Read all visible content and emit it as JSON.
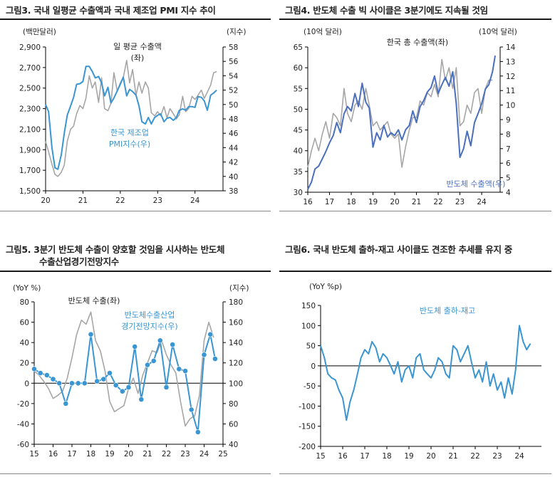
{
  "colors": {
    "gray": "#a6a6a6",
    "blue_light": "#3a95d3",
    "blue_dark": "#4a6fbf"
  },
  "chart_data": [
    {
      "type": "line",
      "title": "그림3.  국내 일평균 수출액과 국내 제조업 PMI 지수 추이",
      "ylabel": "(백만달러)",
      "y2label": "(지수)",
      "ylim": [
        1500,
        2900
      ],
      "y2lim": [
        38,
        58
      ],
      "yticks": [
        "1,500",
        "1,700",
        "1,900",
        "2,100",
        "2,300",
        "2,500",
        "2,700",
        "2,900"
      ],
      "y2ticks": [
        "38",
        "40",
        "42",
        "44",
        "46",
        "48",
        "50",
        "52",
        "54",
        "56",
        "58"
      ],
      "xlim": [
        20.0,
        24.75
      ],
      "xticks": [
        "20",
        "21",
        "22",
        "23",
        "24"
      ],
      "series": [
        {
          "name": "일 평균 수출액 (좌)",
          "axis": "left",
          "color": "gray",
          "x": [
            20.0,
            20.08,
            20.17,
            20.25,
            20.33,
            20.42,
            20.5,
            20.58,
            20.67,
            20.75,
            20.83,
            20.92,
            21.0,
            21.08,
            21.17,
            21.25,
            21.33,
            21.42,
            21.5,
            21.58,
            21.67,
            21.75,
            21.83,
            21.92,
            22.0,
            22.08,
            22.17,
            22.25,
            22.33,
            22.42,
            22.5,
            22.58,
            22.67,
            22.75,
            22.83,
            22.92,
            23.0,
            23.08,
            23.17,
            23.25,
            23.33,
            23.42,
            23.5,
            23.58,
            23.67,
            23.75,
            23.83,
            23.92,
            24.0,
            24.08,
            24.17,
            24.25,
            24.33,
            24.42,
            24.5,
            24.58
          ],
          "y": [
            1980,
            1880,
            1760,
            1660,
            1640,
            1680,
            1750,
            1980,
            2100,
            2130,
            2250,
            2330,
            2300,
            2400,
            2620,
            2500,
            2560,
            2360,
            2600,
            2300,
            2280,
            2350,
            2650,
            2470,
            2550,
            2600,
            2770,
            2550,
            2680,
            2430,
            2560,
            2450,
            2560,
            2500,
            2260,
            2230,
            2270,
            2230,
            2320,
            2210,
            2300,
            2250,
            2200,
            2240,
            2420,
            2270,
            2300,
            2420,
            2390,
            2430,
            2480,
            2400,
            2460,
            2530,
            2650,
            2660
          ]
        },
        {
          "name": "한국 제조업 PMI지수(우)",
          "axis": "right",
          "color": "blue_light",
          "x": [
            20.0,
            20.08,
            20.17,
            20.25,
            20.33,
            20.42,
            20.5,
            20.58,
            20.67,
            20.75,
            20.83,
            20.92,
            21.0,
            21.08,
            21.17,
            21.25,
            21.33,
            21.42,
            21.5,
            21.58,
            21.67,
            21.75,
            21.83,
            21.92,
            22.0,
            22.08,
            22.17,
            22.25,
            22.33,
            22.42,
            22.5,
            22.58,
            22.67,
            22.75,
            22.83,
            22.92,
            23.0,
            23.08,
            23.17,
            23.25,
            23.33,
            23.42,
            23.5,
            23.58,
            23.67,
            23.75,
            23.83,
            23.92,
            24.0,
            24.08,
            24.17,
            24.25,
            24.33,
            24.42,
            24.5,
            24.58
          ],
          "y": [
            50.0,
            49.0,
            44.0,
            41.2,
            41.0,
            43.0,
            46.0,
            48.5,
            49.8,
            51.0,
            52.8,
            52.9,
            53.2,
            55.3,
            55.3,
            54.6,
            53.7,
            53.9,
            53.0,
            51.2,
            52.4,
            50.2,
            50.9,
            51.9,
            52.8,
            53.8,
            51.2,
            52.1,
            51.8,
            51.3,
            49.8,
            47.6,
            47.3,
            48.2,
            47.3,
            48.2,
            48.5,
            48.7,
            47.6,
            48.1,
            48.2,
            47.8,
            48.2,
            49.2,
            49.4,
            49.2,
            49.7,
            49.7,
            49.6,
            51.1,
            51.0,
            50.5,
            49.2,
            51.3,
            51.6,
            52.0
          ]
        }
      ]
    },
    {
      "type": "line",
      "title": "그림4.  반도체 수출 빅 사이클은 3분기에도 지속될 것임",
      "ylabel": "(10억 달러)",
      "y2label": "(10억 달러)",
      "ylim": [
        30,
        65
      ],
      "y2lim": [
        4,
        14
      ],
      "yticks": [
        "30",
        "35",
        "40",
        "45",
        "50",
        "55",
        "60",
        "65"
      ],
      "y2ticks": [
        "4",
        "5",
        "6",
        "7",
        "8",
        "9",
        "10",
        "11",
        "12",
        "13",
        "14"
      ],
      "xlim": [
        16.0,
        24.85
      ],
      "xticks": [
        "16",
        "17",
        "18",
        "19",
        "20",
        "21",
        "22",
        "23",
        "24"
      ],
      "series": [
        {
          "name": "한국 총 수출액(좌)",
          "axis": "left",
          "color": "gray",
          "x": [
            16.0,
            16.17,
            16.33,
            16.5,
            16.67,
            16.83,
            17.0,
            17.17,
            17.33,
            17.5,
            17.67,
            17.83,
            18.0,
            18.17,
            18.33,
            18.5,
            18.67,
            18.83,
            19.0,
            19.17,
            19.33,
            19.5,
            19.67,
            19.83,
            20.0,
            20.17,
            20.33,
            20.5,
            20.67,
            20.83,
            21.0,
            21.17,
            21.33,
            21.5,
            21.67,
            21.83,
            22.0,
            22.17,
            22.33,
            22.5,
            22.67,
            22.83,
            23.0,
            23.17,
            23.33,
            23.5,
            23.67,
            23.83,
            24.0,
            24.17,
            24.33,
            24.5
          ],
          "y": [
            36,
            40,
            43,
            40,
            44,
            47,
            43,
            49,
            48,
            46,
            55,
            49,
            47,
            51,
            52,
            50,
            55,
            51,
            46,
            47,
            45,
            46,
            47,
            44,
            43,
            44,
            36,
            41,
            45,
            48,
            48,
            52,
            51,
            54,
            53,
            56,
            53,
            62,
            57,
            60,
            55,
            60,
            46,
            47,
            51,
            49,
            54,
            55,
            49,
            55,
            57,
            57
          ]
        },
        {
          "name": "반도체 수출액(우)",
          "axis": "right",
          "color": "blue_dark",
          "x": [
            16.0,
            16.17,
            16.33,
            16.5,
            16.67,
            16.83,
            17.0,
            17.17,
            17.33,
            17.5,
            17.67,
            17.83,
            18.0,
            18.17,
            18.33,
            18.5,
            18.67,
            18.83,
            19.0,
            19.17,
            19.33,
            19.5,
            19.67,
            19.83,
            20.0,
            20.17,
            20.33,
            20.5,
            20.67,
            20.83,
            21.0,
            21.17,
            21.33,
            21.5,
            21.67,
            21.83,
            22.0,
            22.17,
            22.33,
            22.5,
            22.67,
            22.83,
            23.0,
            23.17,
            23.33,
            23.5,
            23.67,
            23.83,
            24.0,
            24.17,
            24.33,
            24.5,
            24.62
          ],
          "y": [
            4.2,
            4.7,
            5.6,
            5.8,
            6.3,
            6.8,
            7.4,
            7.9,
            8.8,
            8.1,
            9.4,
            9.9,
            9.6,
            10.8,
            9.9,
            11.5,
            10.2,
            9.8,
            7.1,
            8.1,
            7.6,
            8.6,
            7.8,
            8.1,
            7.9,
            8.3,
            7.6,
            8.3,
            8.6,
            9.6,
            8.8,
            9.9,
            10.3,
            10.9,
            11.2,
            12.0,
            10.8,
            11.4,
            11.9,
            11.3,
            12.3,
            10.1,
            6.4,
            7.0,
            8.2,
            7.2,
            8.8,
            9.4,
            10.1,
            11.1,
            11.4,
            12.3,
            13.4
          ]
        }
      ]
    },
    {
      "type": "line",
      "title": "그림5.  3분기 반도체 수출이 양호할 것임을 시사하는   반도체",
      "title_line2": "수출산업경기전망지수",
      "ylabel": "(YoY %)",
      "y2label": "(지수)",
      "ylim": [
        -60,
        80
      ],
      "y2lim": [
        40,
        180
      ],
      "yticks": [
        "-60",
        "-40",
        "-20",
        "0",
        "20",
        "40",
        "60",
        "80"
      ],
      "y2ticks": [
        "40",
        "60",
        "80",
        "100",
        "120",
        "140",
        "160",
        "180"
      ],
      "xlim": [
        15.0,
        25.0
      ],
      "xticks": [
        "15",
        "16",
        "17",
        "18",
        "19",
        "20",
        "21",
        "22",
        "23",
        "24",
        "25"
      ],
      "series": [
        {
          "name": "반도체 수출(좌)",
          "axis": "left",
          "color": "gray",
          "x": [
            15.0,
            15.25,
            15.5,
            15.75,
            16.0,
            16.25,
            16.5,
            16.75,
            17.0,
            17.25,
            17.5,
            17.75,
            18.0,
            18.25,
            18.5,
            18.75,
            19.0,
            19.25,
            19.5,
            19.75,
            20.0,
            20.25,
            20.5,
            20.75,
            21.0,
            21.25,
            21.5,
            21.75,
            22.0,
            22.25,
            22.5,
            22.75,
            23.0,
            23.25,
            23.5,
            23.75,
            24.0,
            24.25,
            24.5
          ],
          "y": [
            12,
            8,
            2,
            -5,
            -15,
            -12,
            -8,
            5,
            25,
            48,
            62,
            58,
            70,
            42,
            32,
            12,
            -18,
            -28,
            -25,
            -22,
            -5,
            5,
            -10,
            8,
            20,
            32,
            30,
            42,
            28,
            18,
            10,
            -18,
            -42,
            -35,
            -32,
            -12,
            42,
            60,
            45
          ]
        },
        {
          "name": "반도체수출산업 경기전망지수(우)",
          "axis": "right",
          "color": "blue_light",
          "markers": true,
          "x": [
            15.0,
            15.33,
            15.67,
            16.0,
            16.33,
            16.67,
            17.0,
            17.33,
            17.67,
            18.0,
            18.33,
            18.67,
            19.0,
            19.33,
            19.67,
            20.0,
            20.33,
            20.67,
            21.0,
            21.33,
            21.67,
            22.0,
            22.33,
            22.67,
            23.0,
            23.33,
            23.67,
            24.0,
            24.33,
            24.58
          ],
          "y": [
            114,
            110,
            108,
            104,
            100,
            80,
            100,
            100,
            100,
            148,
            102,
            104,
            110,
            98,
            92,
            96,
            136,
            84,
            118,
            122,
            142,
            96,
            138,
            114,
            112,
            74,
            52,
            128,
            148,
            124
          ]
        }
      ]
    },
    {
      "type": "line",
      "title": "그림6.  국내 반도체 출하-재고 사이클도 견조한 추세를 유지 중",
      "ylabel": "(YoY %p)",
      "ylim": [
        -200,
        150
      ],
      "yticks": [
        "-200",
        "-150",
        "-100",
        "-50",
        "0",
        "50",
        "100",
        "150"
      ],
      "xlim": [
        15.0,
        25.0
      ],
      "xticks": [
        "15",
        "16",
        "17",
        "18",
        "19",
        "20",
        "21",
        "22",
        "23",
        "24"
      ],
      "series": [
        {
          "name": "반도체 출하-재고",
          "axis": "left",
          "color": "blue_light",
          "x": [
            15.0,
            15.17,
            15.33,
            15.5,
            15.67,
            15.83,
            16.0,
            16.17,
            16.33,
            16.5,
            16.67,
            16.83,
            17.0,
            17.17,
            17.33,
            17.5,
            17.67,
            17.83,
            18.0,
            18.17,
            18.33,
            18.5,
            18.67,
            18.83,
            19.0,
            19.17,
            19.33,
            19.5,
            19.67,
            19.83,
            20.0,
            20.17,
            20.33,
            20.5,
            20.67,
            20.83,
            21.0,
            21.17,
            21.33,
            21.5,
            21.67,
            21.83,
            22.0,
            22.17,
            22.33,
            22.5,
            22.67,
            22.83,
            23.0,
            23.17,
            23.33,
            23.5,
            23.67,
            23.83,
            24.0,
            24.17,
            24.33,
            24.5
          ],
          "y": [
            50,
            20,
            -20,
            -30,
            -35,
            -60,
            -80,
            -135,
            -90,
            -60,
            -20,
            20,
            40,
            30,
            60,
            45,
            10,
            30,
            20,
            0,
            -20,
            10,
            -40,
            -10,
            0,
            -30,
            20,
            30,
            -10,
            -20,
            -30,
            -10,
            20,
            10,
            -20,
            -30,
            50,
            40,
            10,
            30,
            50,
            10,
            -30,
            -10,
            -40,
            10,
            -50,
            -20,
            -60,
            -40,
            -80,
            -30,
            -70,
            -10,
            100,
            60,
            40,
            55
          ]
        }
      ]
    }
  ]
}
